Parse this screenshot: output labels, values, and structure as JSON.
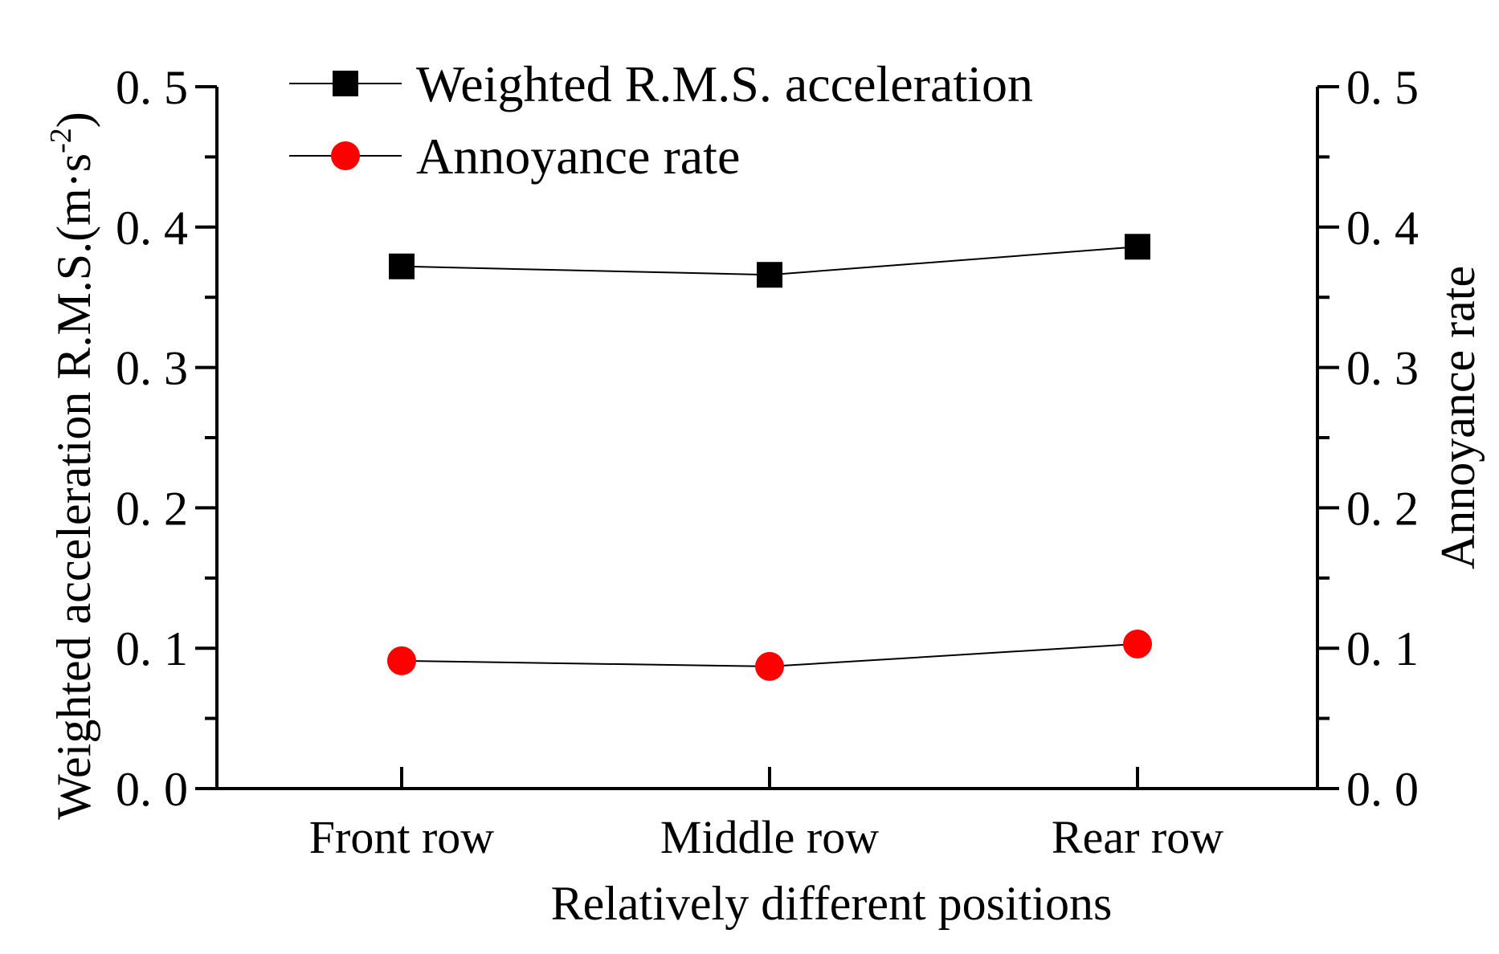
{
  "chart_data": {
    "type": "line",
    "title": "",
    "categories": [
      "Front row",
      "Middle row",
      "Rear row"
    ],
    "xlabel": "Relatively different positions",
    "ylabel": "Weighted acceleration R.M.S.(m·s",
    "ylabel_sup": "-2",
    "ylabel_close": ")",
    "y2label": "Annoyance rate",
    "ylim": [
      0.0,
      0.5
    ],
    "y2lim": [
      0.0,
      0.5
    ],
    "yticks": [
      "0. 0",
      "0. 1",
      "0. 2",
      "0. 3",
      "0. 4",
      "0. 5"
    ],
    "y2ticks": [
      "0. 0",
      "0. 1",
      "0. 2",
      "0. 3",
      "0. 4",
      "0. 5"
    ],
    "ytick_values": [
      0.0,
      0.1,
      0.2,
      0.3,
      0.4,
      0.5
    ],
    "legend_position": "top-left",
    "series": [
      {
        "name": "Weighted R.M.S. acceleration",
        "axis": "left",
        "marker": "square",
        "color": "#000000",
        "values": [
          0.372,
          0.366,
          0.386
        ]
      },
      {
        "name": "Annoyance rate",
        "axis": "right",
        "marker": "circle",
        "color": "#ff0000",
        "values": [
          0.091,
          0.087,
          0.103
        ]
      }
    ]
  }
}
